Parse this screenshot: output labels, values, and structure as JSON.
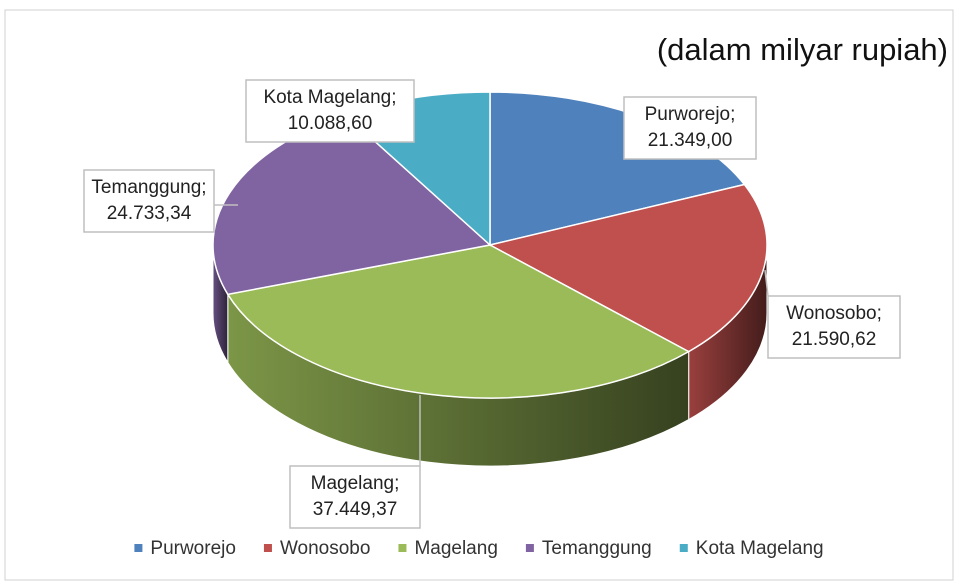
{
  "chart_data": {
    "type": "pie",
    "subtitle": "(dalam milyar rupiah)",
    "categories": [
      "Purworejo",
      "Wonosobo",
      "Magelang",
      "Temanggung",
      "Kota Magelang"
    ],
    "values": [
      21349.0,
      21590.62,
      37449.37,
      24733.34,
      10088.6
    ],
    "value_labels": [
      "21.349,00",
      "21.590,62",
      "37.449,37",
      "24.733,34",
      "10.088,60"
    ],
    "label_separator": ";",
    "colors": [
      "#4f81bd",
      "#c0504d",
      "#9bbb59",
      "#8064a2",
      "#4bacc6"
    ],
    "legend": "bottom"
  }
}
